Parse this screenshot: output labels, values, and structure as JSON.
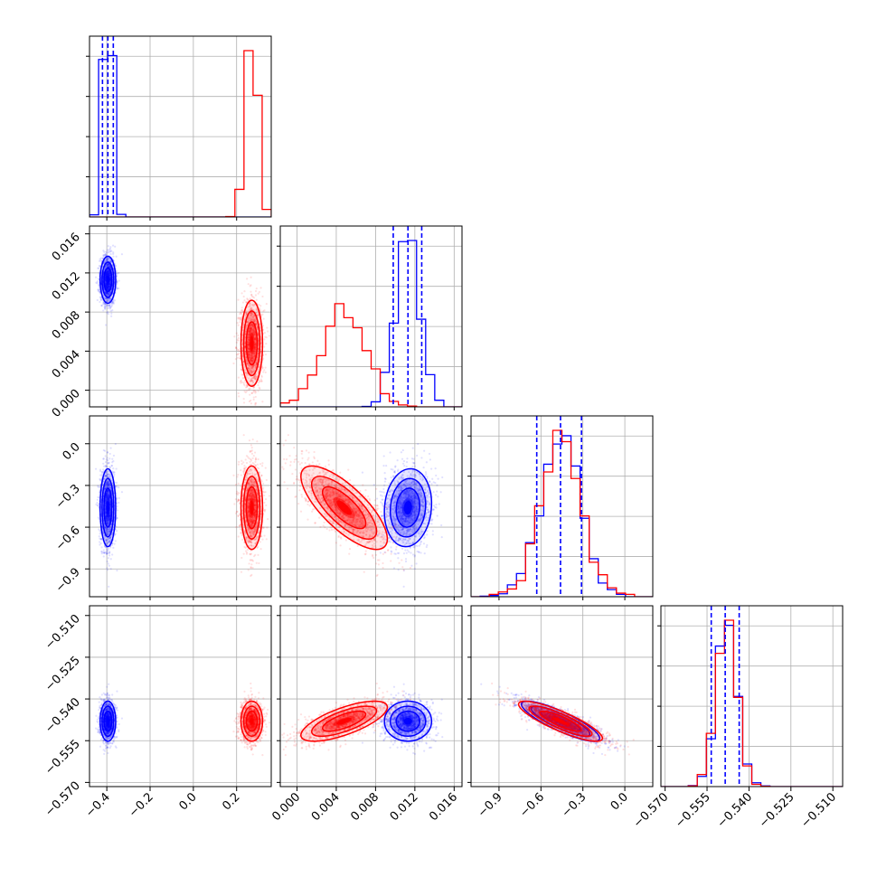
{
  "chart_data": {
    "type": "corner",
    "title": "",
    "grid": true,
    "series_colors": [
      "#0000ff",
      "#ff0000"
    ],
    "parameters": [
      {
        "ticks": [
          -0.4,
          -0.2,
          0.0,
          0.2
        ],
        "tick_labels": [
          "−0.4",
          "−0.2",
          "0.0",
          "0.2"
        ],
        "range": [
          -0.48,
          0.36
        ]
      },
      {
        "ticks": [
          0.0,
          0.004,
          0.008,
          0.012,
          0.016
        ],
        "tick_labels": [
          "0.000",
          "0.004",
          "0.008",
          "0.012",
          "0.016"
        ],
        "range": [
          -0.0017,
          0.0168
        ]
      },
      {
        "ticks": [
          -0.9,
          -0.6,
          -0.3,
          0.0
        ],
        "tick_labels": [
          "−0.9",
          "−0.6",
          "−0.3",
          "0.0"
        ],
        "range": [
          -1.1,
          0.2
        ]
      },
      {
        "ticks": [
          -0.57,
          -0.555,
          -0.54,
          -0.525,
          -0.51
        ],
        "tick_labels": [
          "−0.570",
          "−0.555",
          "−0.540",
          "−0.525",
          "−0.510"
        ],
        "range": [
          -0.5715,
          -0.5065
        ]
      }
    ],
    "series": [
      {
        "color": "#0000ff",
        "quantiles": [
          [
            -0.42,
            -0.395,
            -0.37
          ],
          [
            0.0098,
            0.0113,
            0.0127
          ],
          [
            -0.63,
            -0.46,
            -0.31
          ],
          [
            -0.5535,
            -0.5485,
            -0.5435
          ]
        ],
        "mean": [
          -0.395,
          0.0113,
          -0.46,
          -0.548
        ],
        "std": [
          0.018,
          0.0012,
          0.14,
          0.0036
        ],
        "corr": [
          [
            1,
            0,
            0,
            0
          ],
          [
            0,
            1,
            0.1,
            0
          ],
          [
            0,
            0.1,
            1,
            -0.85
          ],
          [
            0,
            0,
            -0.85,
            1
          ]
        ]
      },
      {
        "color": "#ff0000",
        "mean": [
          0.27,
          0.0048,
          -0.46,
          -0.548
        ],
        "std": [
          0.025,
          0.0022,
          0.15,
          0.0036
        ],
        "corr": [
          [
            1,
            0,
            0,
            0
          ],
          [
            0,
            1,
            -0.75,
            0.7
          ],
          [
            0,
            -0.75,
            1,
            -0.85
          ],
          [
            0,
            0.7,
            -0.85,
            1
          ]
        ]
      }
    ]
  }
}
